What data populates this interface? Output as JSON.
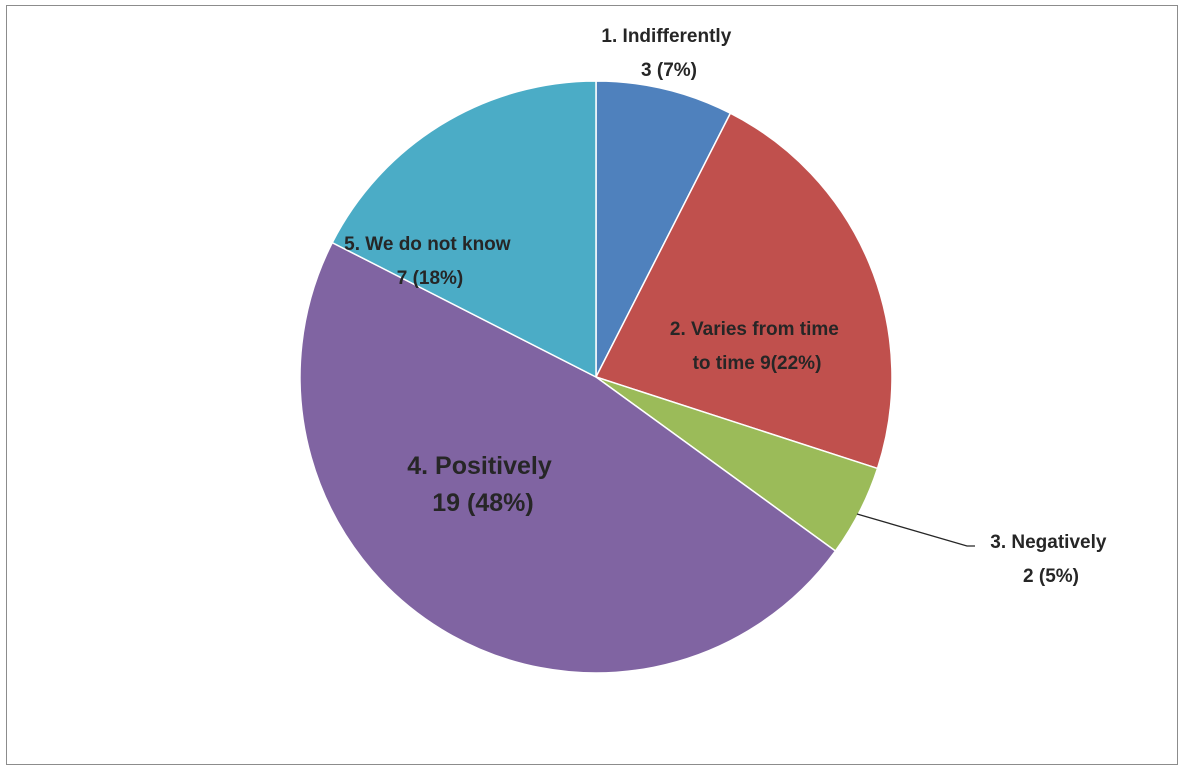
{
  "chart_data": {
    "type": "pie",
    "title": "",
    "slices": [
      {
        "label": "1. Indifferently",
        "count": 3,
        "percent_label": "3 (7%)",
        "value": 3,
        "color": "#4F81BD"
      },
      {
        "label": "2. Varies from time to time",
        "count": 9,
        "percent_label": "9(22%)",
        "value": 9,
        "color": "#C0504D"
      },
      {
        "label": "3. Negatively",
        "count": 2,
        "percent_label": "2 (5%)",
        "value": 2,
        "color": "#9BBB59"
      },
      {
        "label": "4. Positively",
        "count": 19,
        "percent_label": "19 (48%)",
        "value": 19,
        "color": "#8064A2"
      },
      {
        "label": "5. We do not know",
        "count": 7,
        "percent_label": "7 (18%)",
        "value": 7,
        "color": "#4BACC6"
      }
    ],
    "data_labels": {
      "indifferently": {
        "line1": "1. Indifferently",
        "line2": "3 (7%)"
      },
      "varies": {
        "line1": "2. Varies from time",
        "line2": "to time  9(22%)"
      },
      "negatively": {
        "line1": "3. Negatively",
        "line2": "2 (5%)"
      },
      "positively": {
        "line1": "4. Positively",
        "line2": "19 (48%)"
      },
      "unknown": {
        "line1": "5. We do not know",
        "line2": "7 (18%)"
      }
    },
    "legend": "none"
  }
}
